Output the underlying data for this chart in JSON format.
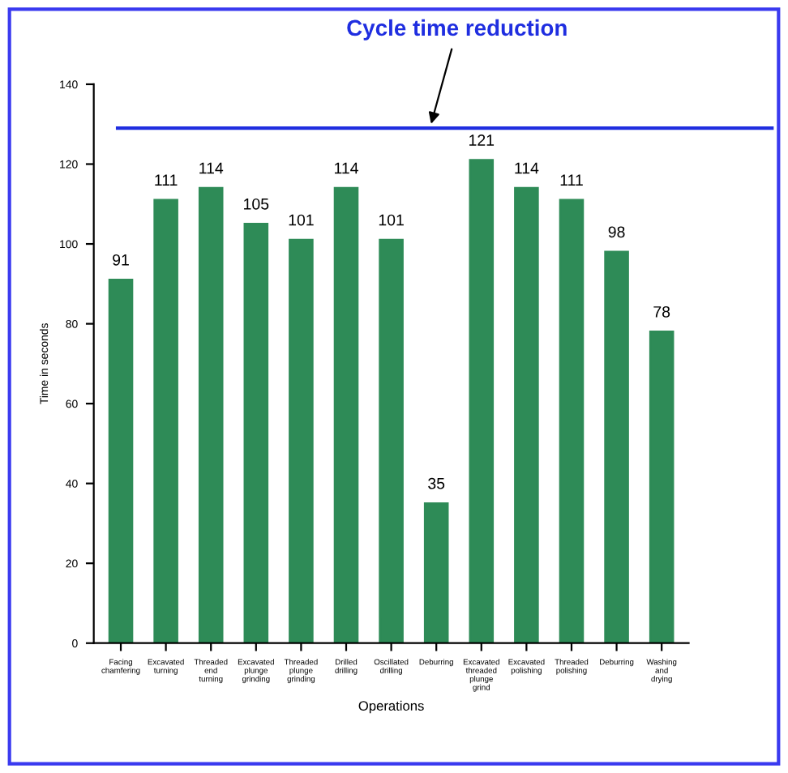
{
  "chart_data": {
    "type": "bar",
    "xlabel": "Operations",
    "ylabel": "Time in seconds",
    "categories": [
      "Facing chamfering",
      "Excavated turning",
      "Threaded end turning",
      "Excavated plunge grinding",
      "Threaded plunge grinding",
      "Drilled drilling",
      "Oscillated drilling",
      "Deburring",
      "Excavated threaded plunge grind",
      "Excavated polishing",
      "Threaded polishing",
      "Deburring",
      "Washing and drying"
    ],
    "values": [
      91,
      111,
      114,
      105,
      101,
      114,
      101,
      35,
      121,
      114,
      111,
      98,
      78
    ],
    "color": "#2e8b57",
    "data_labels": true,
    "ylim": [
      0,
      140
    ],
    "yticks": [
      0,
      20,
      40,
      60,
      80,
      100,
      120,
      140
    ],
    "grid": false,
    "legend": false,
    "ref_lines": [
      {
        "axis": "y",
        "value": 129,
        "label": "Cycle time reduction",
        "color": "#1f2ee0",
        "line_style": "solid"
      }
    ]
  }
}
